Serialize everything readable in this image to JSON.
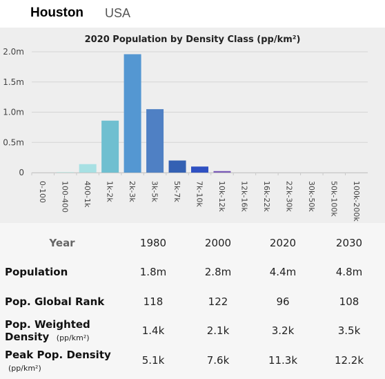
{
  "header": {
    "city": "Houston",
    "country": "USA"
  },
  "chart_data": {
    "type": "bar",
    "title": "2020 Population by Density Class (pp/km²)",
    "xlabel": "",
    "ylabel": "",
    "categories": [
      "0-100",
      "100-400",
      "400-1k",
      "1k-2k",
      "2k-3k",
      "3k-5k",
      "5k-7k",
      "7k-10k",
      "10k-12k",
      "12k-16k",
      "16k-22k",
      "22k-30k",
      "30k-50k",
      "50k-100k",
      "100k-200k"
    ],
    "values": [
      0,
      10000,
      140000,
      860000,
      1960000,
      1050000,
      200000,
      100000,
      25000,
      0,
      0,
      0,
      0,
      0,
      0
    ],
    "colors": [
      "#d6f0ee",
      "#c4ebe8",
      "#a7e0e3",
      "#6fbfd0",
      "#5497d2",
      "#4f80c4",
      "#3461b3",
      "#2f51c2",
      "#7a5ab8",
      "#7a5ab8",
      "#7a5ab8",
      "#7a5ab8",
      "#7a5ab8",
      "#7a5ab8",
      "#7a5ab8"
    ],
    "ylim": [
      0,
      2000000
    ],
    "yticks": [
      {
        "value": 0,
        "label": "0"
      },
      {
        "value": 500000,
        "label": "0.5m"
      },
      {
        "value": 1000000,
        "label": "1.0m"
      },
      {
        "value": 1500000,
        "label": "1.5m"
      },
      {
        "value": 2000000,
        "label": "2.0m"
      }
    ],
    "grid": true
  },
  "table": {
    "year_header": "Year",
    "years": [
      "1980",
      "2000",
      "2020",
      "2030"
    ],
    "rows": [
      {
        "label": "Population",
        "unit": "",
        "values": [
          "1.8m",
          "2.8m",
          "4.4m",
          "4.8m"
        ]
      },
      {
        "label": "Pop. Global Rank",
        "unit": "",
        "values": [
          "118",
          "122",
          "96",
          "108"
        ]
      },
      {
        "label_line1": "Pop. Weighted",
        "label_line2": "Density",
        "unit": "(pp/km²)",
        "values": [
          "1.4k",
          "2.1k",
          "3.2k",
          "3.5k"
        ]
      },
      {
        "label": "Peak Pop. Density",
        "unit": "(pp/km²)",
        "values": [
          "5.1k",
          "7.6k",
          "11.3k",
          "12.2k"
        ]
      }
    ]
  }
}
